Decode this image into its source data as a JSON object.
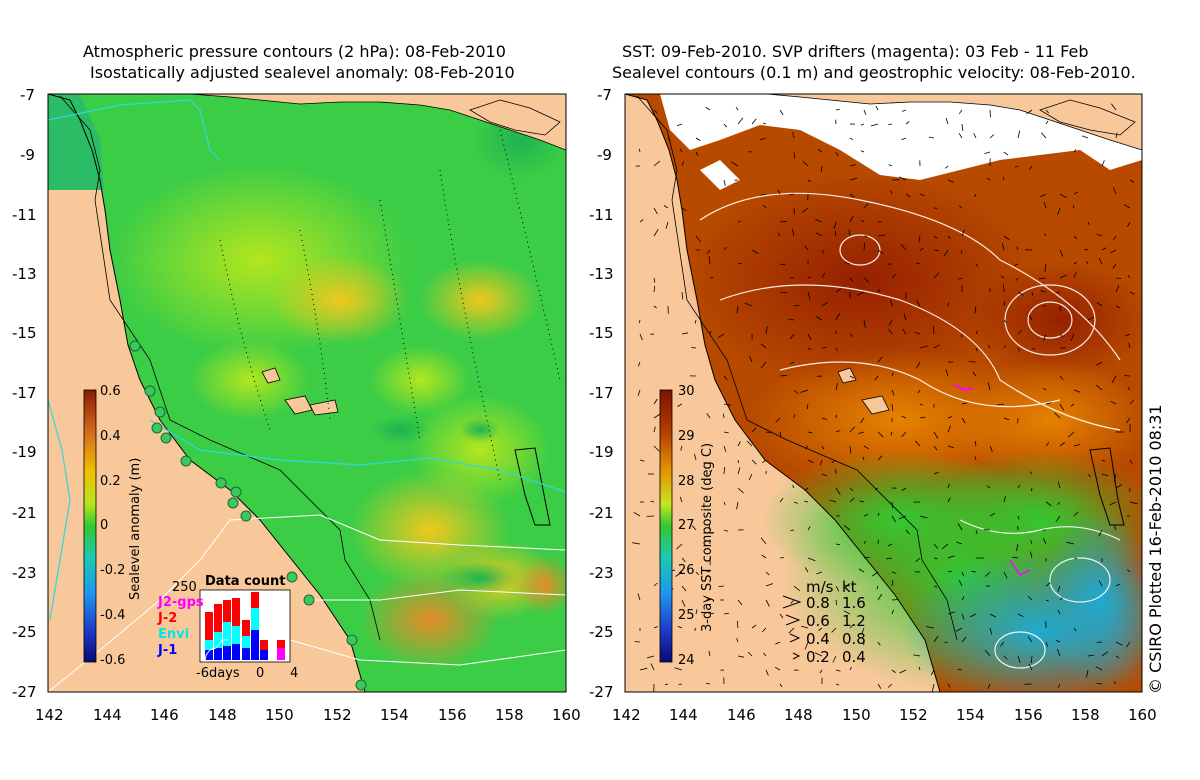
{
  "left_panel": {
    "title_line1": "Atmospheric pressure contours (2 hPa): 08-Feb-2010",
    "title_line2": "Isostatically adjusted sealevel anomaly: 08-Feb-2010",
    "lat_ticks": [
      "-7",
      "-9",
      "-11",
      "-13",
      "-15",
      "-17",
      "-19",
      "-21",
      "-23",
      "-25",
      "-27"
    ],
    "lon_ticks": [
      "142",
      "144",
      "146",
      "148",
      "150",
      "152",
      "154",
      "156",
      "158",
      "160"
    ],
    "colorbar": {
      "label": "Sealevel anomaly (m)",
      "ticks": [
        "0.6",
        "0.4",
        "0.2",
        "0",
        "-0.2",
        "-0.4",
        "-0.6"
      ]
    },
    "data_count": {
      "title": "Data count",
      "max_label": "250",
      "series": [
        "J2-gps",
        "J-2",
        "Envi",
        "J-1"
      ],
      "series_colors": [
        "#ff00ff",
        "#ff0000",
        "#00ffff",
        "#0000ff"
      ],
      "x_labels": [
        "-6days",
        "0",
        "4"
      ]
    }
  },
  "right_panel": {
    "title_line1": "SST: 09-Feb-2010. SVP drifters (magenta): 03 Feb - 11 Feb",
    "title_line2": "Sealevel contours (0.1 m) and geostrophic velocity: 08-Feb-2010.",
    "lat_ticks": [
      "-7",
      "-9",
      "-11",
      "-13",
      "-15",
      "-17",
      "-19",
      "-21",
      "-23",
      "-25",
      "-27"
    ],
    "lon_ticks": [
      "142",
      "144",
      "146",
      "148",
      "150",
      "152",
      "154",
      "156",
      "158",
      "160"
    ],
    "colorbar": {
      "label": "3-day SST composite (deg C)",
      "ticks": [
        "30",
        "29",
        "28",
        "27",
        "26",
        "25",
        "24"
      ]
    },
    "velocity_legend": {
      "header_ms": "m/s",
      "header_kt": "kt",
      "rows": [
        {
          "ms": "0.8",
          "kt": "1.6"
        },
        {
          "ms": "0.6",
          "kt": "1.2"
        },
        {
          "ms": "0.4",
          "kt": "0.8"
        },
        {
          "ms": "0.2",
          "kt": "0.4"
        }
      ]
    },
    "credit": "© CSIRO Plotted 16-Feb-2010 08:31"
  },
  "colors": {
    "land": "#f9c89a",
    "sla_green": "#3fcf3f",
    "sla_light": "#a6e61e",
    "sla_yellow": "#e6d21e",
    "sst_deep": "#a02800",
    "sst_orange": "#d26a00",
    "sst_green": "#3fc83f"
  }
}
